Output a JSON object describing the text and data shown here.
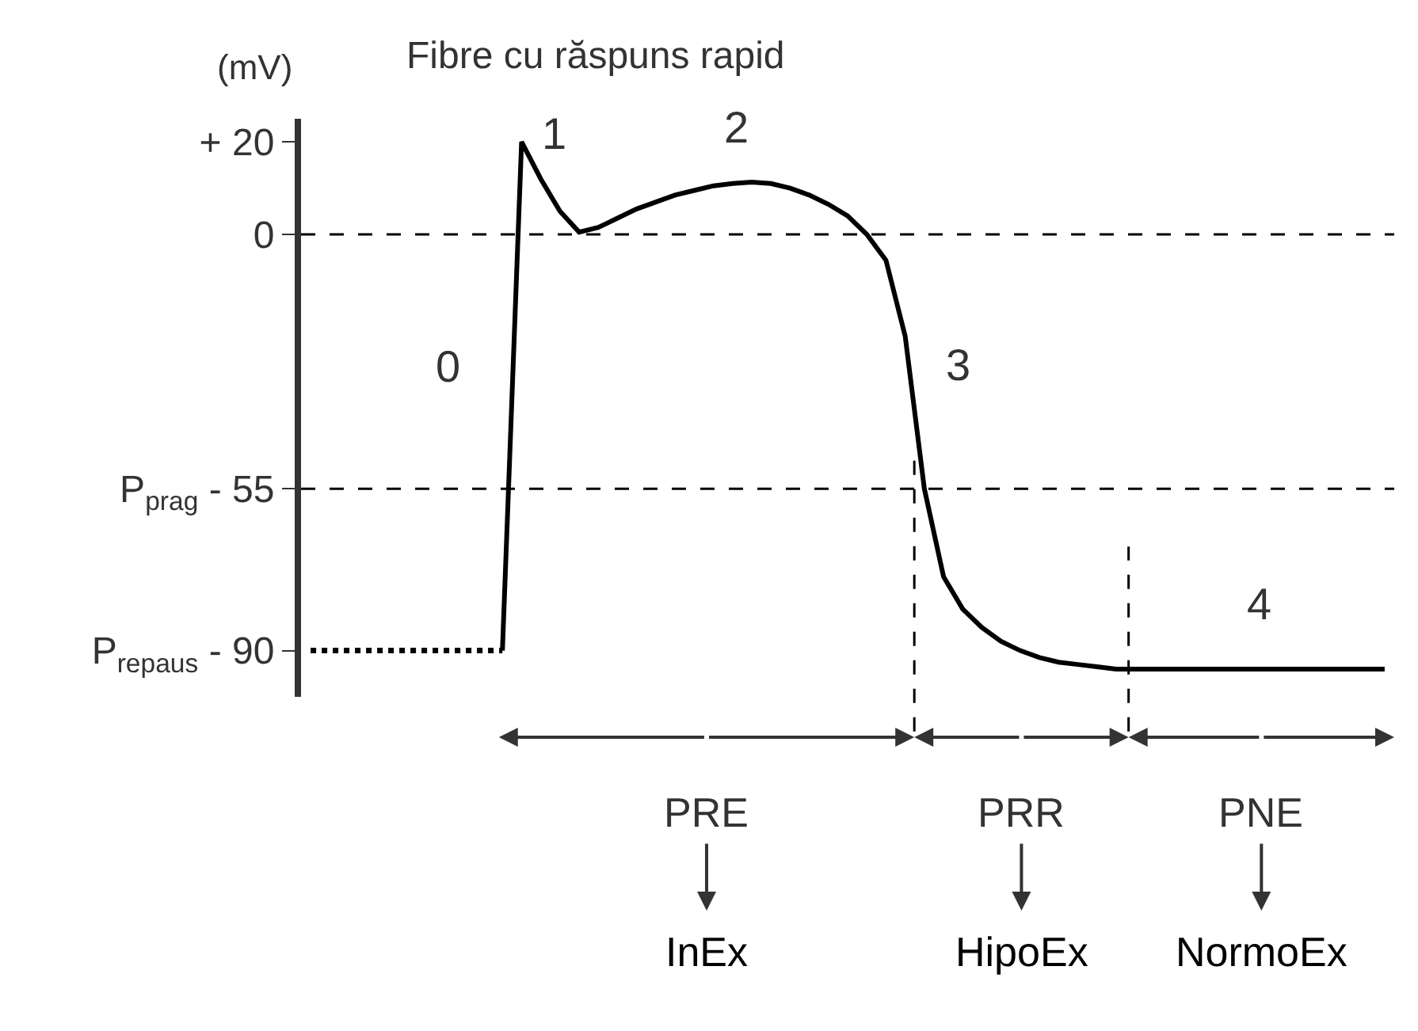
{
  "chart_data": {
    "type": "line",
    "title": "Fibre cu răspuns rapid",
    "ylabel": "(mV)",
    "categories": [
      null,
      null,
      null,
      null,
      null,
      null,
      null,
      null,
      null,
      null,
      null,
      null,
      null,
      null,
      null,
      null,
      null,
      null,
      null,
      null,
      null,
      null,
      null,
      null,
      null,
      null,
      null,
      null,
      null,
      null,
      null,
      null,
      null,
      null,
      null,
      null,
      null,
      null,
      null,
      null,
      null,
      null,
      null,
      null,
      null,
      null,
      null,
      null,
      null,
      null,
      null,
      null,
      null,
      null,
      null,
      null,
      null
    ],
    "ylim": [
      -100,
      25
    ],
    "yticks": [
      {
        "value": 20,
        "label": "+ 20"
      },
      0,
      {
        "value": -55,
        "label": "P$_{prag}$ - 55"
      },
      {
        "value": -90,
        "label": "P$_{repaus}$ - 90"
      }
    ],
    "tick_labels": "y",
    "grid": false,
    "marker": "none",
    "series": [
      {
        "color": "#000000",
        "line_style": "dotted",
        "values": [
          -90,
          -90,
          -90,
          -90,
          -90,
          -90,
          -90,
          -90,
          -90,
          -90,
          -90,
          null,
          null,
          null,
          null,
          null,
          null,
          null,
          null,
          null,
          null,
          null,
          null,
          null,
          null,
          null,
          null,
          null,
          null,
          null,
          null,
          null,
          null,
          null,
          null,
          null,
          null,
          null,
          null,
          null,
          null,
          null,
          null,
          null,
          null,
          null,
          null,
          null,
          null,
          null,
          null,
          null,
          null,
          null,
          null,
          null,
          null
        ]
      },
      {
        "color": "#000000",
        "line_style": "solid",
        "values": [
          null,
          null,
          null,
          null,
          null,
          null,
          null,
          null,
          null,
          null,
          -90,
          20,
          12,
          5,
          0.5,
          1.5,
          3.5,
          5.5,
          7,
          8.5,
          9.5,
          10.5,
          11,
          11.3,
          11,
          10,
          8.5,
          6.5,
          4,
          0,
          -5.6,
          -22,
          -55,
          -74,
          -81,
          -85,
          -88,
          -90,
          -91.5,
          -92.5,
          -93,
          -93.5,
          -94,
          -94,
          -94,
          -94,
          -94,
          -94,
          -94,
          -94,
          -94,
          -94,
          -94,
          -94,
          -94,
          -94,
          -94
        ]
      }
    ],
    "ref_lines": [
      {
        "axis": "y",
        "value": 0,
        "line_style": "dashed"
      },
      {
        "axis": "y",
        "value": -55,
        "line_style": "dashed"
      }
    ],
    "annotations": [
      "0",
      "1",
      "2",
      "3",
      "4",
      "PRE",
      "PRR",
      "PNE",
      "InEx",
      "HipoEx",
      "NormoEx"
    ]
  }
}
